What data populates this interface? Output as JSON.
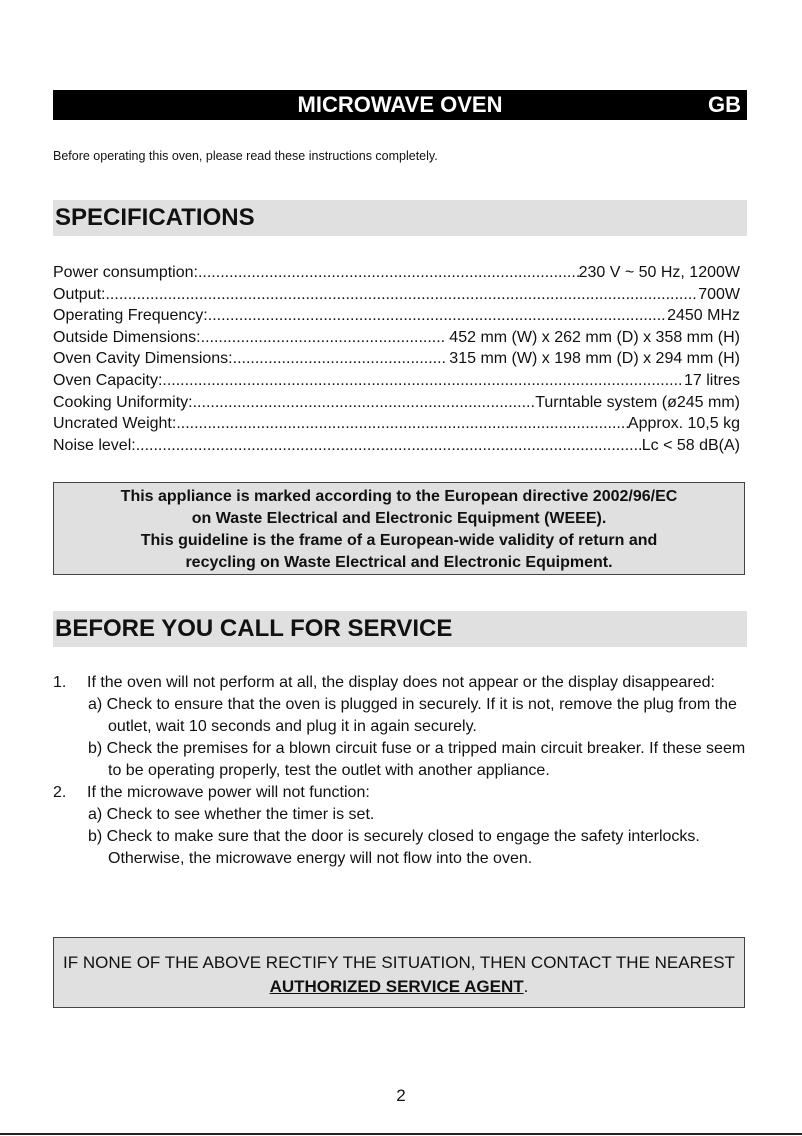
{
  "header": {
    "title": "MICROWAVE OVEN",
    "lang": "GB"
  },
  "intro": "Before operating this oven, please read these instructions completely.",
  "specifications": {
    "heading": "SPECIFICATIONS",
    "rows": [
      {
        "label": "Power consumption: ",
        "value": "230 V ~ 50 Hz, 1200W"
      },
      {
        "label": "Output: ",
        "value": "700W"
      },
      {
        "label": "Operating Frequency: ",
        "value": "2450 MHz"
      },
      {
        "label": "Outside Dimensions:",
        "value": " 452 mm (W) x 262 mm (D) x 358 mm (H)"
      },
      {
        "label": "Oven Cavity Dimensions:",
        "value": " 315 mm (W) x 198 mm (D) x 294 mm (H)"
      },
      {
        "label": "Oven Capacity: ",
        "value": "17 litres"
      },
      {
        "label": "Cooking Uniformity:",
        "value": "Turntable system (ø245 mm)"
      },
      {
        "label": "Uncrated Weight: ",
        "value": "Approx. 10,5 kg"
      },
      {
        "label": "Noise level:",
        "value": "Lc < 58 dB(A)"
      }
    ]
  },
  "weee": [
    "This appliance is marked according to the European directive 2002/96/EC",
    "on Waste Electrical and Electronic Equipment (WEEE).",
    "This guideline is the frame of a European-wide validity of return and",
    "recycling on Waste Electrical and Electronic Equipment."
  ],
  "service": {
    "heading": "BEFORE YOU CALL FOR SERVICE",
    "items": [
      {
        "num": "1.",
        "text": "If the oven will not perform at all, the display does not appear or the display disappeared:",
        "sub": [
          "a) Check to ensure that the oven is plugged in securely. If it is not, remove the plug from the outlet, wait 10 seconds and plug it in again securely.",
          "b) Check the premises for a blown circuit fuse or a tripped main circuit breaker. If these seem to be operating properly, test the outlet with another appliance."
        ]
      },
      {
        "num": "2.",
        "text": "If the microwave power will not function:",
        "sub": [
          "a) Check to see whether the timer is set.",
          "b) Check to make sure that the door is securely closed to engage the safety interlocks. Otherwise, the microwave energy will not flow into the oven."
        ]
      }
    ]
  },
  "final": {
    "text1": "IF NONE OF THE ABOVE RECTIFY THE SITUATION, THEN CONTACT THE NEAREST ",
    "emph": "AUTHORIZED SERVICE AGENT",
    "end": "."
  },
  "page_number": "2"
}
